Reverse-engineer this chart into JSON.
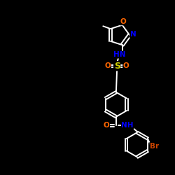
{
  "background_color": "#000000",
  "bond_color": "#ffffff",
  "atom_colors": {
    "N": "#0000ff",
    "O": "#ff6600",
    "S": "#cccc00",
    "Br": "#cc4400",
    "C": "#ffffff"
  },
  "figsize": [
    2.5,
    2.5
  ],
  "dpi": 100,
  "xlim": [
    0,
    10
  ],
  "ylim": [
    0,
    10
  ]
}
